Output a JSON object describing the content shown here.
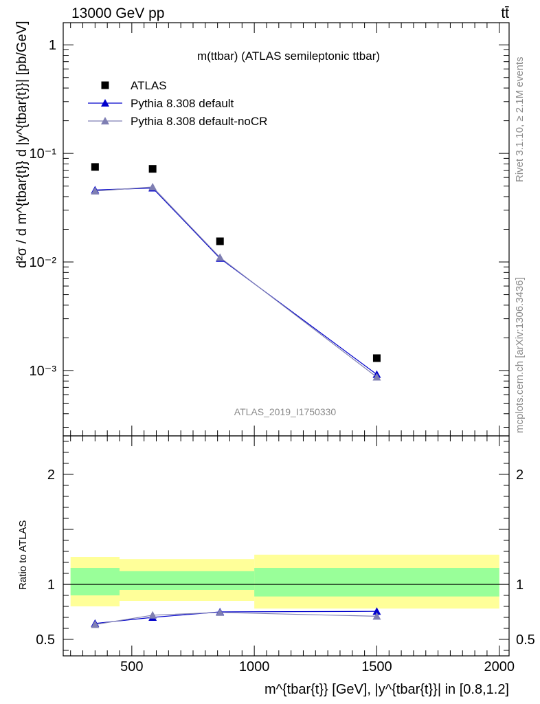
{
  "header": {
    "energy_label": "13000 GeV pp",
    "process_label": "tt̄"
  },
  "side_labels": {
    "rivet": "Rivet 3.1.10, ≥ 2.1M events",
    "mcplots": "mcplots.cern.ch [arXiv:1306.3436]"
  },
  "chart_data": [
    {
      "type": "scatter",
      "title": "m(ttbar) (ATLAS semileptonic ttbar)",
      "watermark": "ATLAS_2019_I1750330",
      "ylabel": "d²σ / d m^{tbar{t}} d |y^{tbar{t}}| [pb/GeV]",
      "xlim": [
        220,
        2040
      ],
      "ylim": [
        0.00025,
        1.6
      ],
      "yscale": "log",
      "y_ticks": [
        "10⁻³",
        "10⁻²",
        "10⁻¹",
        "1"
      ],
      "legend_position": "top-left",
      "series": [
        {
          "name": "ATLAS",
          "marker": "square",
          "color": "#000000",
          "x": [
            350,
            585,
            860,
            1500
          ],
          "y": [
            0.075,
            0.072,
            0.0155,
            0.0013
          ]
        },
        {
          "name": "Pythia 8.308 default",
          "marker": "triangle",
          "color": "#0000cc",
          "x": [
            350,
            585,
            860,
            1500
          ],
          "y": [
            0.046,
            0.048,
            0.0108,
            0.00092
          ]
        },
        {
          "name": "Pythia 8.308 default-noCR",
          "marker": "triangle",
          "color": "#7f7fb3",
          "x": [
            350,
            585,
            860,
            1500
          ],
          "y": [
            0.045,
            0.049,
            0.011,
            0.00087
          ]
        }
      ]
    },
    {
      "type": "line",
      "ylabel": "Ratio to ATLAS",
      "xlabel": "m^{tbar{t}} [GeV], |y^{tbar{t}}| in [0.8,1.2]",
      "xlim": [
        220,
        2040
      ],
      "ylim": [
        0.35,
        2.35
      ],
      "x_ticks": [
        "500",
        "1000",
        "1500",
        "2000"
      ],
      "y_ticks": [
        "0.5",
        "1",
        "2"
      ],
      "bands": [
        {
          "xmin": 250,
          "xmax": 450,
          "yellow": [
            0.8,
            1.25
          ],
          "green": [
            0.9,
            1.15
          ]
        },
        {
          "xmin": 450,
          "xmax": 1000,
          "yellow": [
            0.85,
            1.23
          ],
          "green": [
            0.95,
            1.12
          ]
        },
        {
          "xmin": 1000,
          "xmax": 2000,
          "yellow": [
            0.78,
            1.27
          ],
          "green": [
            0.89,
            1.15
          ]
        }
      ],
      "series": [
        {
          "name": "Pythia 8.308 default",
          "color": "#0000cc",
          "x": [
            350,
            585,
            860,
            1500
          ],
          "y": [
            0.645,
            0.7,
            0.75,
            0.755
          ]
        },
        {
          "name": "Pythia 8.308 default-noCR",
          "color": "#7f7fb3",
          "x": [
            350,
            585,
            860,
            1500
          ],
          "y": [
            0.635,
            0.72,
            0.745,
            0.71
          ]
        }
      ]
    }
  ]
}
